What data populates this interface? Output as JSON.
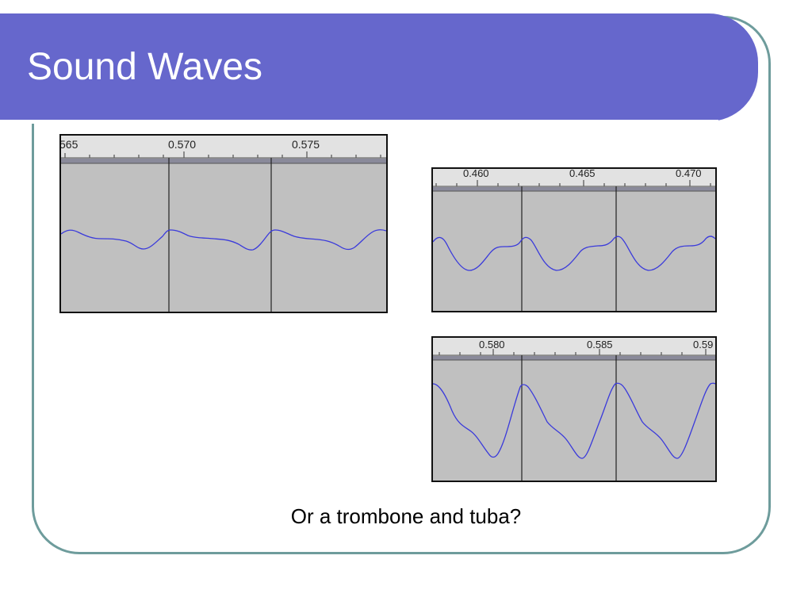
{
  "slide": {
    "title": "Sound Waves",
    "caption": "Or a trombone and tuba?",
    "colors": {
      "title_bar": "#6667cc",
      "frame": "#6e9c9c",
      "waveform": "#3a3adb",
      "track_background": "#c0c0c0",
      "ruler_background": "#e2e2e2"
    }
  },
  "panels": [
    {
      "ruler_labels": [
        "565",
        "0.570",
        "0.575"
      ],
      "waveform_shape": "flute-like gentle wave"
    },
    {
      "ruler_labels": [
        "0.460",
        "0.465",
        "0.470"
      ],
      "waveform_shape": "trombone-like wave"
    },
    {
      "ruler_labels": [
        "0.580",
        "0.585",
        "0.59"
      ],
      "waveform_shape": "tuba-like deep wave"
    }
  ]
}
